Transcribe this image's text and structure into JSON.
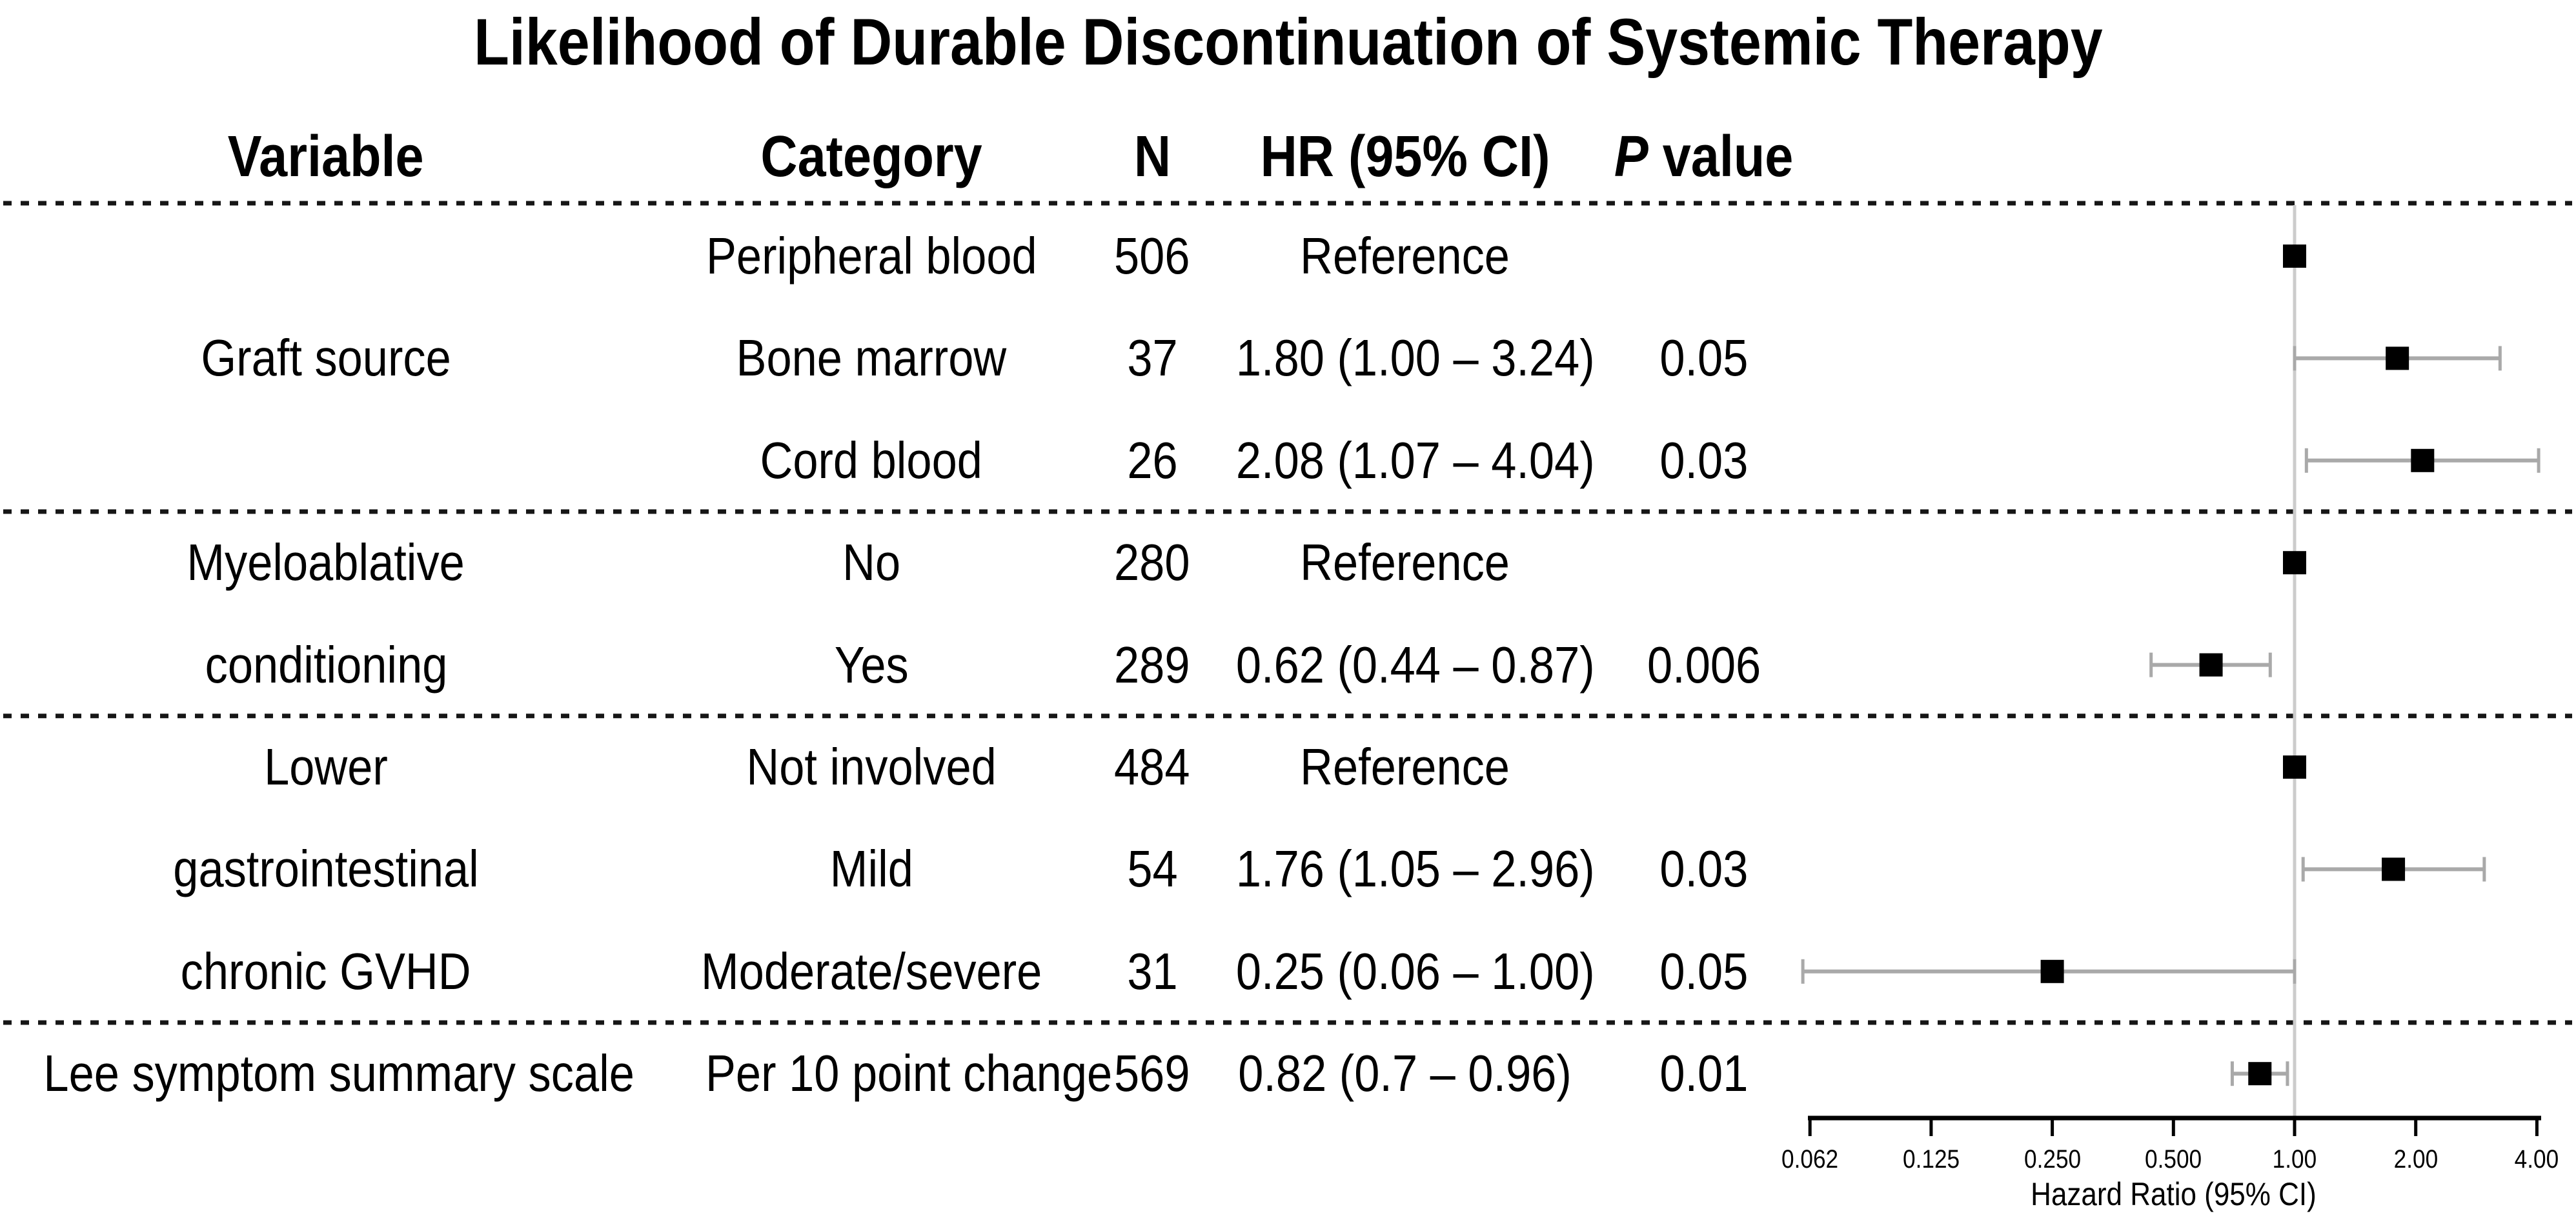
{
  "title": "Likelihood of Durable Discontinuation of Systemic Therapy",
  "table": {
    "headers": {
      "variable": "Variable",
      "category": "Category",
      "n": "N",
      "hr": "HR (95% CI)",
      "p_italic": "P",
      "p_rest": " value"
    }
  },
  "chart_data": {
    "type": "scatter",
    "variant": "forest-plot",
    "title": "Likelihood of Durable Discontinuation of Systemic Therapy",
    "xlabel": "Hazard Ratio (95% CI)",
    "x_scale": "log2",
    "xlim": [
      0.062,
      4.0
    ],
    "reference_value": 1.0,
    "grid": false,
    "x_ticks": [
      {
        "value": 0.0625,
        "label": "0.062"
      },
      {
        "value": 0.125,
        "label": "0.125"
      },
      {
        "value": 0.25,
        "label": "0.250"
      },
      {
        "value": 0.5,
        "label": "0.500"
      },
      {
        "value": 1.0,
        "label": "1.00"
      },
      {
        "value": 2.0,
        "label": "2.00"
      },
      {
        "value": 4.0,
        "label": "4.00"
      }
    ],
    "rows": [
      {
        "variable": "",
        "category": "Peripheral blood",
        "n": "506",
        "hr_text": "Reference",
        "p": "",
        "hr": 1.0,
        "ci_low": null,
        "ci_high": null,
        "reference": true
      },
      {
        "variable": "Graft source",
        "category": "Bone marrow",
        "n": "37",
        "hr_text": "1.80 (1.00 – 3.24)",
        "p": "0.05",
        "hr": 1.8,
        "ci_low": 1.0,
        "ci_high": 3.24,
        "reference": false
      },
      {
        "variable": "",
        "category": "Cord blood",
        "n": "26",
        "hr_text": "2.08 (1.07 – 4.04)",
        "p": "0.03",
        "hr": 2.08,
        "ci_low": 1.07,
        "ci_high": 4.04,
        "reference": false
      },
      {
        "variable": "Myeloablative",
        "category": "No",
        "n": "280",
        "hr_text": "Reference",
        "p": "",
        "hr": 1.0,
        "ci_low": null,
        "ci_high": null,
        "reference": true
      },
      {
        "variable": "conditioning",
        "category": "Yes",
        "n": "289",
        "hr_text": "0.62 (0.44 – 0.87)",
        "p": "0.006",
        "hr": 0.62,
        "ci_low": 0.44,
        "ci_high": 0.87,
        "reference": false
      },
      {
        "variable": "Lower",
        "category": "Not involved",
        "n": "484",
        "hr_text": "Reference",
        "p": "",
        "hr": 1.0,
        "ci_low": null,
        "ci_high": null,
        "reference": true
      },
      {
        "variable": "gastrointestinal",
        "category": "Mild",
        "n": "54",
        "hr_text": "1.76 (1.05 – 2.96)",
        "p": "0.03",
        "hr": 1.76,
        "ci_low": 1.05,
        "ci_high": 2.96,
        "reference": false
      },
      {
        "variable": "chronic GVHD",
        "category": "Moderate/severe",
        "n": "31",
        "hr_text": "0.25 (0.06 – 1.00)",
        "p": "0.05",
        "hr": 0.25,
        "ci_low": 0.06,
        "ci_high": 1.0,
        "reference": false
      },
      {
        "variable": "Lee symptom summary scale",
        "category": "Per 10 point change",
        "n": "569",
        "hr_text": "0.82 (0.7 – 0.96)",
        "p": "0.01",
        "hr": 0.82,
        "ci_low": 0.7,
        "ci_high": 0.96,
        "reference": false
      }
    ],
    "group_separators_after": [
      2,
      4,
      7
    ],
    "legend": null
  },
  "colors": {
    "text": "#000000",
    "marker": "#000000",
    "ci_line": "#a9a9a9",
    "reference_line": "#cccccc",
    "separator": "#161616",
    "axis": "#000000",
    "background": "#ffffff"
  }
}
